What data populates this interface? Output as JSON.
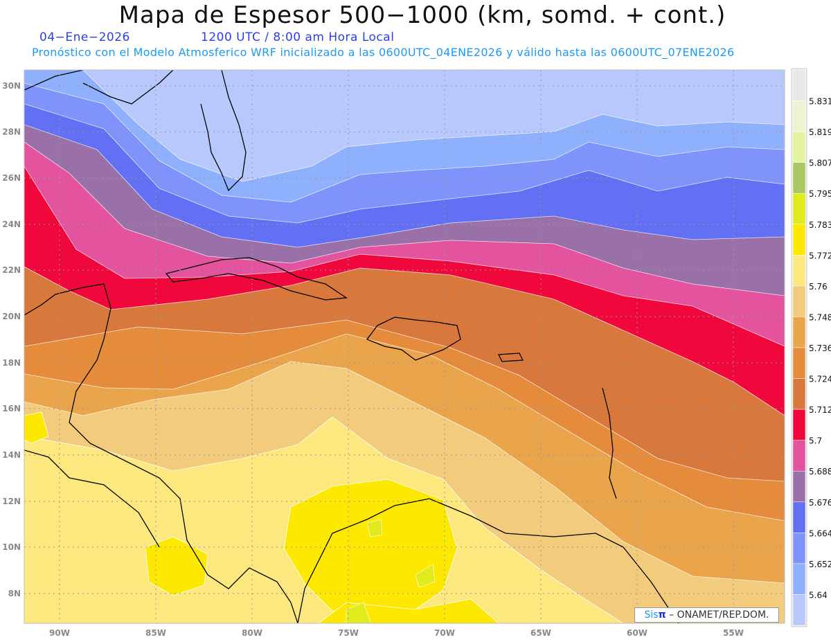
{
  "header": {
    "title": "Mapa de Espesor 500−1000 (km, somd. + cont.)",
    "date": "04−Ene−2026",
    "time": "1200 UTC / 8:00 am Hora Local",
    "forecast_info": "Pronóstico con el Modelo Atmosferico WRF inicializado a las 0600UTC_04ENE2026 y válido hasta las  0600UTC_07ENE2026"
  },
  "map": {
    "lon_labels": [
      "90W",
      "85W",
      "80W",
      "75W",
      "70W",
      "65W",
      "60W",
      "55W"
    ],
    "lat_labels": [
      "30N",
      "28N",
      "26N",
      "24N",
      "22N",
      "20N",
      "18N",
      "16N",
      "14N",
      "12N",
      "10N",
      "8N"
    ]
  },
  "colorbar": {
    "labels": [
      "5.831",
      "5.819",
      "5.807",
      "5.795",
      "5.783",
      "5.772",
      "5.76",
      "5.748",
      "5.736",
      "5.724",
      "5.712",
      "5.7",
      "5.688",
      "5.676",
      "5.664",
      "5.652",
      "5.64"
    ],
    "colors_top_to_bottom": [
      "#e8e8e8",
      "#eef4d2",
      "#e4f4a2",
      "#a8c864",
      "#e0ea1c",
      "#fce800",
      "#fde880",
      "#f2cc7c",
      "#eaa44c",
      "#e48c3c",
      "#d8783c",
      "#f0083c",
      "#e4539e",
      "#9a70a8",
      "#6370f4",
      "#7f93fa",
      "#8fb0fc",
      "#b8c8fc"
    ]
  },
  "credit": {
    "sis": "Sis",
    "pi": "π",
    "text": "– ONAMET/REP.DOM."
  }
}
